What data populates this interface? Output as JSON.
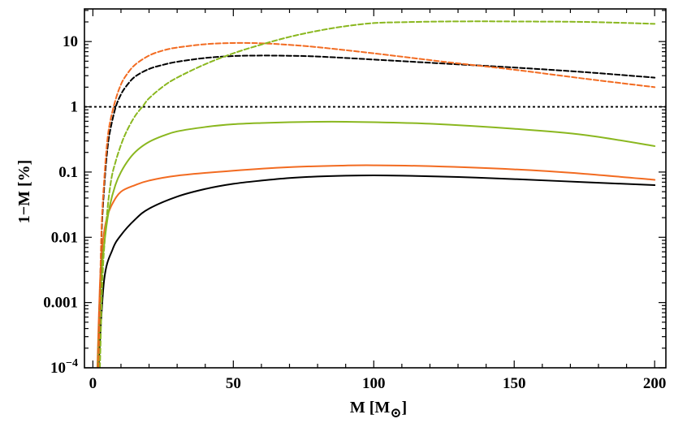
{
  "chart_data": {
    "type": "line",
    "title": "",
    "xlabel": "M [M",
    "xlabel_symbol": "⊙",
    "xlabel_close": "]",
    "ylabel": "1−M [%]",
    "xlim": [
      -3,
      204
    ],
    "ylim_log10": [
      -4,
      1.5
    ],
    "yscale": "log",
    "grid": false,
    "legend": "none",
    "x_ticks": [
      {
        "value": 0,
        "label": "0"
      },
      {
        "value": 50,
        "label": "50"
      },
      {
        "value": 100,
        "label": "100"
      },
      {
        "value": 150,
        "label": "150"
      },
      {
        "value": 200,
        "label": "200"
      }
    ],
    "y_ticks": [
      {
        "value": 10,
        "label": "10"
      },
      {
        "value": 1,
        "label": "1"
      },
      {
        "value": 0.1,
        "label": "0.1"
      },
      {
        "value": 0.01,
        "label": "0.01"
      },
      {
        "value": 0.001,
        "label": "0.001"
      },
      {
        "value": 0.0001,
        "label": "10",
        "sup": "−4"
      }
    ],
    "reference_line": {
      "y": 1,
      "style": "dotted",
      "color": "#000000"
    },
    "series": [
      {
        "name": "black-solid",
        "color": "#000000",
        "style": "solid",
        "x": [
          2,
          4,
          7,
          10,
          15,
          20,
          30,
          40,
          50,
          60,
          70,
          80,
          90,
          100,
          110,
          130,
          150,
          175,
          200
        ],
        "y": [
          0.0001,
          0.0022,
          0.0065,
          0.0108,
          0.0187,
          0.0275,
          0.042,
          0.055,
          0.066,
          0.074,
          0.081,
          0.0855,
          0.088,
          0.089,
          0.088,
          0.084,
          0.078,
          0.07,
          0.063
        ]
      },
      {
        "name": "orange-solid",
        "color": "#f26b21",
        "style": "solid",
        "x": [
          1.6,
          2.5,
          3.5,
          5,
          7,
          10,
          15,
          20,
          30,
          50,
          70,
          90,
          100,
          120,
          150,
          175,
          200
        ],
        "y": [
          0.0001,
          0.0019,
          0.0083,
          0.02,
          0.033,
          0.05,
          0.063,
          0.074,
          0.088,
          0.105,
          0.119,
          0.126,
          0.127,
          0.123,
          0.11,
          0.094,
          0.076
        ]
      },
      {
        "name": "green-solid",
        "color": "#8ab71f",
        "style": "solid",
        "x": [
          1.8,
          3,
          4.5,
          6,
          8,
          10,
          13,
          16,
          20,
          25,
          30,
          40,
          50,
          60,
          70,
          80,
          90,
          100,
          120,
          150,
          175,
          200
        ],
        "y": [
          0.0001,
          0.0025,
          0.0115,
          0.03,
          0.063,
          0.1,
          0.16,
          0.22,
          0.29,
          0.36,
          0.42,
          0.49,
          0.54,
          0.565,
          0.58,
          0.59,
          0.59,
          0.58,
          0.55,
          0.46,
          0.37,
          0.25
        ]
      },
      {
        "name": "black-dashed",
        "color": "#000000",
        "style": "dashed",
        "x": [
          2,
          3,
          4,
          5,
          6,
          8,
          10,
          12,
          15,
          20,
          25,
          30,
          40,
          50,
          60,
          70,
          80,
          100,
          125,
          150,
          175,
          200
        ],
        "y": [
          0.0001,
          0.0083,
          0.056,
          0.19,
          0.4,
          0.95,
          1.55,
          2.1,
          2.9,
          3.8,
          4.4,
          4.9,
          5.6,
          6.0,
          6.1,
          6.05,
          5.9,
          5.3,
          4.6,
          4.0,
          3.4,
          2.8
        ]
      },
      {
        "name": "orange-dashed",
        "color": "#f26b21",
        "style": "dashed",
        "x": [
          2,
          3,
          4,
          5,
          6,
          8,
          10,
          12,
          15,
          20,
          25,
          30,
          40,
          50,
          60,
          70,
          80,
          100,
          125,
          150,
          175,
          200
        ],
        "y": [
          0.0001,
          0.0105,
          0.072,
          0.26,
          0.55,
          1.25,
          2.2,
          3.1,
          4.4,
          6.1,
          7.3,
          8.1,
          9.1,
          9.5,
          9.4,
          8.9,
          8.2,
          6.6,
          4.9,
          3.7,
          2.7,
          2.0
        ]
      },
      {
        "name": "green-dashed",
        "color": "#8ab71f",
        "style": "dashed",
        "x": [
          2.5,
          3.5,
          5,
          6.5,
          8,
          10,
          12,
          15,
          18,
          20,
          25,
          30,
          40,
          50,
          60,
          70,
          80,
          90,
          100,
          110,
          125,
          140,
          150,
          175,
          200
        ],
        "y": [
          0.0001,
          0.0028,
          0.022,
          0.075,
          0.14,
          0.26,
          0.42,
          0.72,
          1.05,
          1.35,
          2.05,
          2.8,
          4.5,
          6.6,
          9.0,
          11.8,
          14.6,
          17.2,
          19.2,
          19.8,
          20.3,
          20.4,
          20.3,
          20.0,
          18.7
        ]
      }
    ]
  }
}
